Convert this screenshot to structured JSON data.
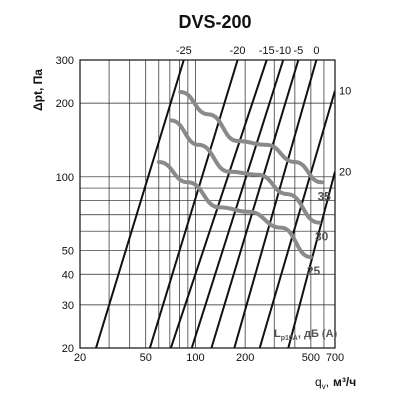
{
  "chart_data": {
    "type": "line",
    "title": "DVS-200",
    "xlabel": {
      "main": "q",
      "sub": "v",
      "sep": ",",
      "unit": "м³/ч"
    },
    "ylabel": "Δpt, Па",
    "x_scale": "log",
    "y_scale": "log",
    "xlim": [
      20,
      700
    ],
    "ylim": [
      20,
      300
    ],
    "x_ticks": [
      {
        "value": 20,
        "label": "20"
      },
      {
        "value": 50,
        "label": "50"
      },
      {
        "value": 100,
        "label": "100"
      },
      {
        "value": 200,
        "label": "200"
      },
      {
        "value": 500,
        "label": "500"
      },
      {
        "value": 700,
        "label": "700"
      }
    ],
    "y_ticks": [
      {
        "value": 20,
        "label": "20"
      },
      {
        "value": 30,
        "label": "30"
      },
      {
        "value": 40,
        "label": "40"
      },
      {
        "value": 50,
        "label": "50"
      },
      {
        "value": 100,
        "label": "100"
      },
      {
        "value": 200,
        "label": "200"
      },
      {
        "value": 300,
        "label": "300"
      }
    ],
    "grid": true,
    "system_lines": [
      {
        "label": "-25",
        "points": [
          [
            25,
            20
          ],
          [
            85,
            300
          ]
        ]
      },
      {
        "label": "-20",
        "points": [
          [
            53,
            20
          ],
          [
            180,
            300
          ]
        ]
      },
      {
        "label": "-15",
        "points": [
          [
            71,
            20
          ],
          [
            270,
            300
          ]
        ]
      },
      {
        "label": "-10",
        "points": [
          [
            95,
            20
          ],
          [
            340,
            300
          ]
        ]
      },
      {
        "label": "-5",
        "points": [
          [
            125,
            20
          ],
          [
            420,
            300
          ]
        ]
      },
      {
        "label": "0",
        "points": [
          [
            172,
            20
          ],
          [
            540,
            300
          ]
        ]
      },
      {
        "label": "10",
        "points": [
          [
            245,
            20
          ],
          [
            700,
            225
          ]
        ]
      },
      {
        "label": "20",
        "points": [
          [
            365,
            20
          ],
          [
            700,
            105
          ]
        ]
      }
    ],
    "series": [
      {
        "name": "35",
        "points": [
          [
            81,
            222
          ],
          [
            120,
            180
          ],
          [
            180,
            140
          ],
          [
            270,
            135
          ],
          [
            400,
            115
          ],
          [
            580,
            95
          ]
        ]
      },
      {
        "name": "30",
        "points": [
          [
            71,
            170
          ],
          [
            105,
            135
          ],
          [
            160,
            105
          ],
          [
            240,
            102
          ],
          [
            360,
            85
          ],
          [
            560,
            65
          ]
        ]
      },
      {
        "name": "25",
        "points": [
          [
            60,
            115
          ],
          [
            90,
            95
          ],
          [
            140,
            75
          ],
          [
            210,
            72
          ],
          [
            330,
            62
          ],
          [
            500,
            47
          ]
        ]
      }
    ],
    "annotation": {
      "main": "L",
      "sub": "p10A",
      "suffix": ", дБ (A)"
    }
  }
}
